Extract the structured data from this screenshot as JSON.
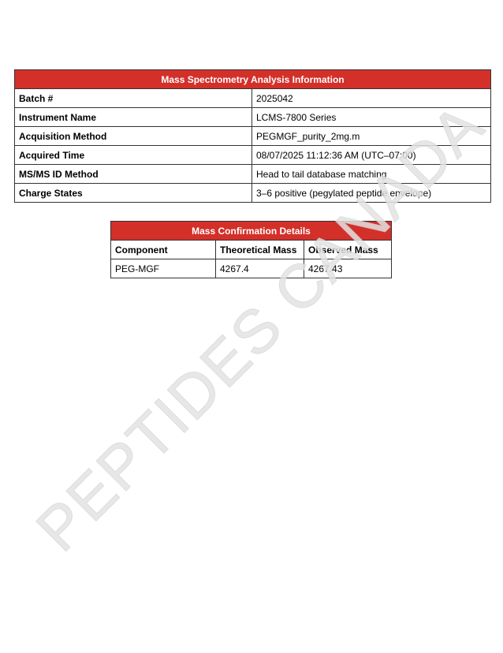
{
  "watermark": "PEPTIDES CANADA",
  "analysis": {
    "title": "Mass Spectrometry Analysis Information",
    "rows": [
      [
        "Batch #",
        "2025042"
      ],
      [
        "Instrument Name",
        "LCMS-7800 Series"
      ],
      [
        "Acquisition Method",
        "PEGMGF_purity_2mg.m"
      ],
      [
        "Acquired Time",
        "08/07/2025 11:12:36 AM (UTC–07:00)"
      ],
      [
        "MS/MS ID Method",
        "Head to tail database matching"
      ],
      [
        "Charge States",
        "3–6 positive (pegylated peptide envelope)"
      ]
    ]
  },
  "confirmation": {
    "title": "Mass Confirmation Details",
    "headers": [
      "Component",
      "Theoretical Mass",
      "Observed Mass"
    ],
    "rows": [
      [
        "PEG-MGF",
        "4267.4",
        "4267.43"
      ]
    ]
  },
  "colors": {
    "header": "#d3302a"
  }
}
